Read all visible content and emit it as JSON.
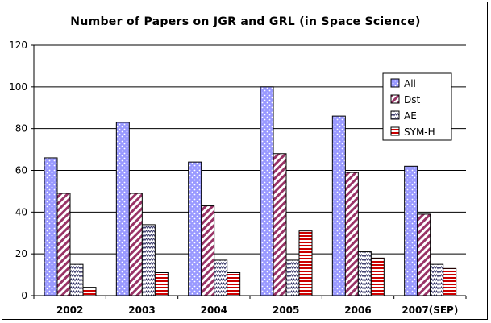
{
  "chart_data": {
    "type": "bar",
    "title": "Number of Papers on JGR and GRL (in Space Science)",
    "xlabel": "",
    "ylabel": "",
    "categories": [
      "2002",
      "2003",
      "2004",
      "2005",
      "2006",
      "2007(SEP)"
    ],
    "ylim": [
      0,
      120
    ],
    "yticks": [
      0,
      20,
      40,
      60,
      80,
      100,
      120
    ],
    "grid": true,
    "legend_position": "top-right",
    "series": [
      {
        "name": "All",
        "values": [
          66,
          83,
          64,
          100,
          86,
          62
        ],
        "color": "#9999ff",
        "pattern": "dots"
      },
      {
        "name": "Dst",
        "values": [
          49,
          49,
          43,
          68,
          59,
          39
        ],
        "color": "#993366",
        "pattern": "diagonal-stripes"
      },
      {
        "name": "AE",
        "values": [
          15,
          34,
          17,
          17,
          21,
          15
        ],
        "color": "#333366",
        "pattern": "zigzag"
      },
      {
        "name": "SYM-H",
        "values": [
          4,
          11,
          11,
          31,
          18,
          13
        ],
        "color": "#cc0000",
        "pattern": "horizontal-stripes"
      }
    ]
  }
}
